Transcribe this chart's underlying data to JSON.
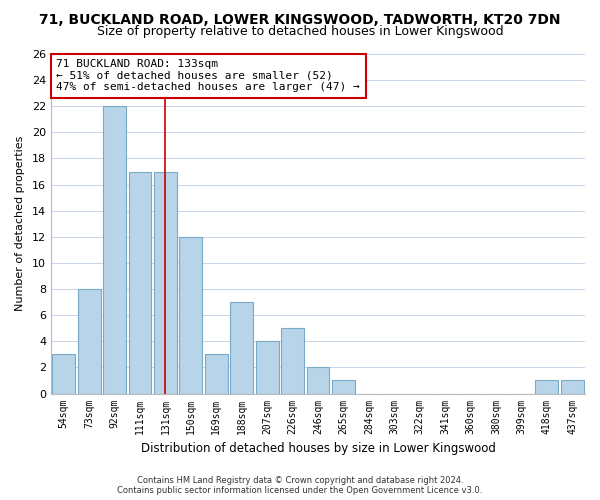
{
  "title": "71, BUCKLAND ROAD, LOWER KINGSWOOD, TADWORTH, KT20 7DN",
  "subtitle": "Size of property relative to detached houses in Lower Kingswood",
  "xlabel": "Distribution of detached houses by size in Lower Kingswood",
  "ylabel": "Number of detached properties",
  "bar_labels": [
    "54sqm",
    "73sqm",
    "92sqm",
    "111sqm",
    "131sqm",
    "150sqm",
    "169sqm",
    "188sqm",
    "207sqm",
    "226sqm",
    "246sqm",
    "265sqm",
    "284sqm",
    "303sqm",
    "322sqm",
    "341sqm",
    "360sqm",
    "380sqm",
    "399sqm",
    "418sqm",
    "437sqm"
  ],
  "bar_values": [
    3,
    8,
    22,
    17,
    17,
    12,
    3,
    7,
    4,
    5,
    2,
    1,
    0,
    0,
    0,
    0,
    0,
    0,
    0,
    1,
    1
  ],
  "bar_color": "#b8d4e8",
  "bar_edge_color": "#7aaac8",
  "highlight_line_index": 4,
  "highlight_line_color": "#cc0000",
  "ylim": [
    0,
    26
  ],
  "yticks": [
    0,
    2,
    4,
    6,
    8,
    10,
    12,
    14,
    16,
    18,
    20,
    22,
    24,
    26
  ],
  "annotation_title": "71 BUCKLAND ROAD: 133sqm",
  "annotation_line1": "← 51% of detached houses are smaller (52)",
  "annotation_line2": "47% of semi-detached houses are larger (47) →",
  "annotation_box_color": "#ffffff",
  "annotation_box_edge": "#cc0000",
  "footer_line1": "Contains HM Land Registry data © Crown copyright and database right 2024.",
  "footer_line2": "Contains public sector information licensed under the Open Government Licence v3.0.",
  "background_color": "#ffffff",
  "grid_color": "#c8d4e8",
  "title_fontsize": 10,
  "subtitle_fontsize": 9
}
